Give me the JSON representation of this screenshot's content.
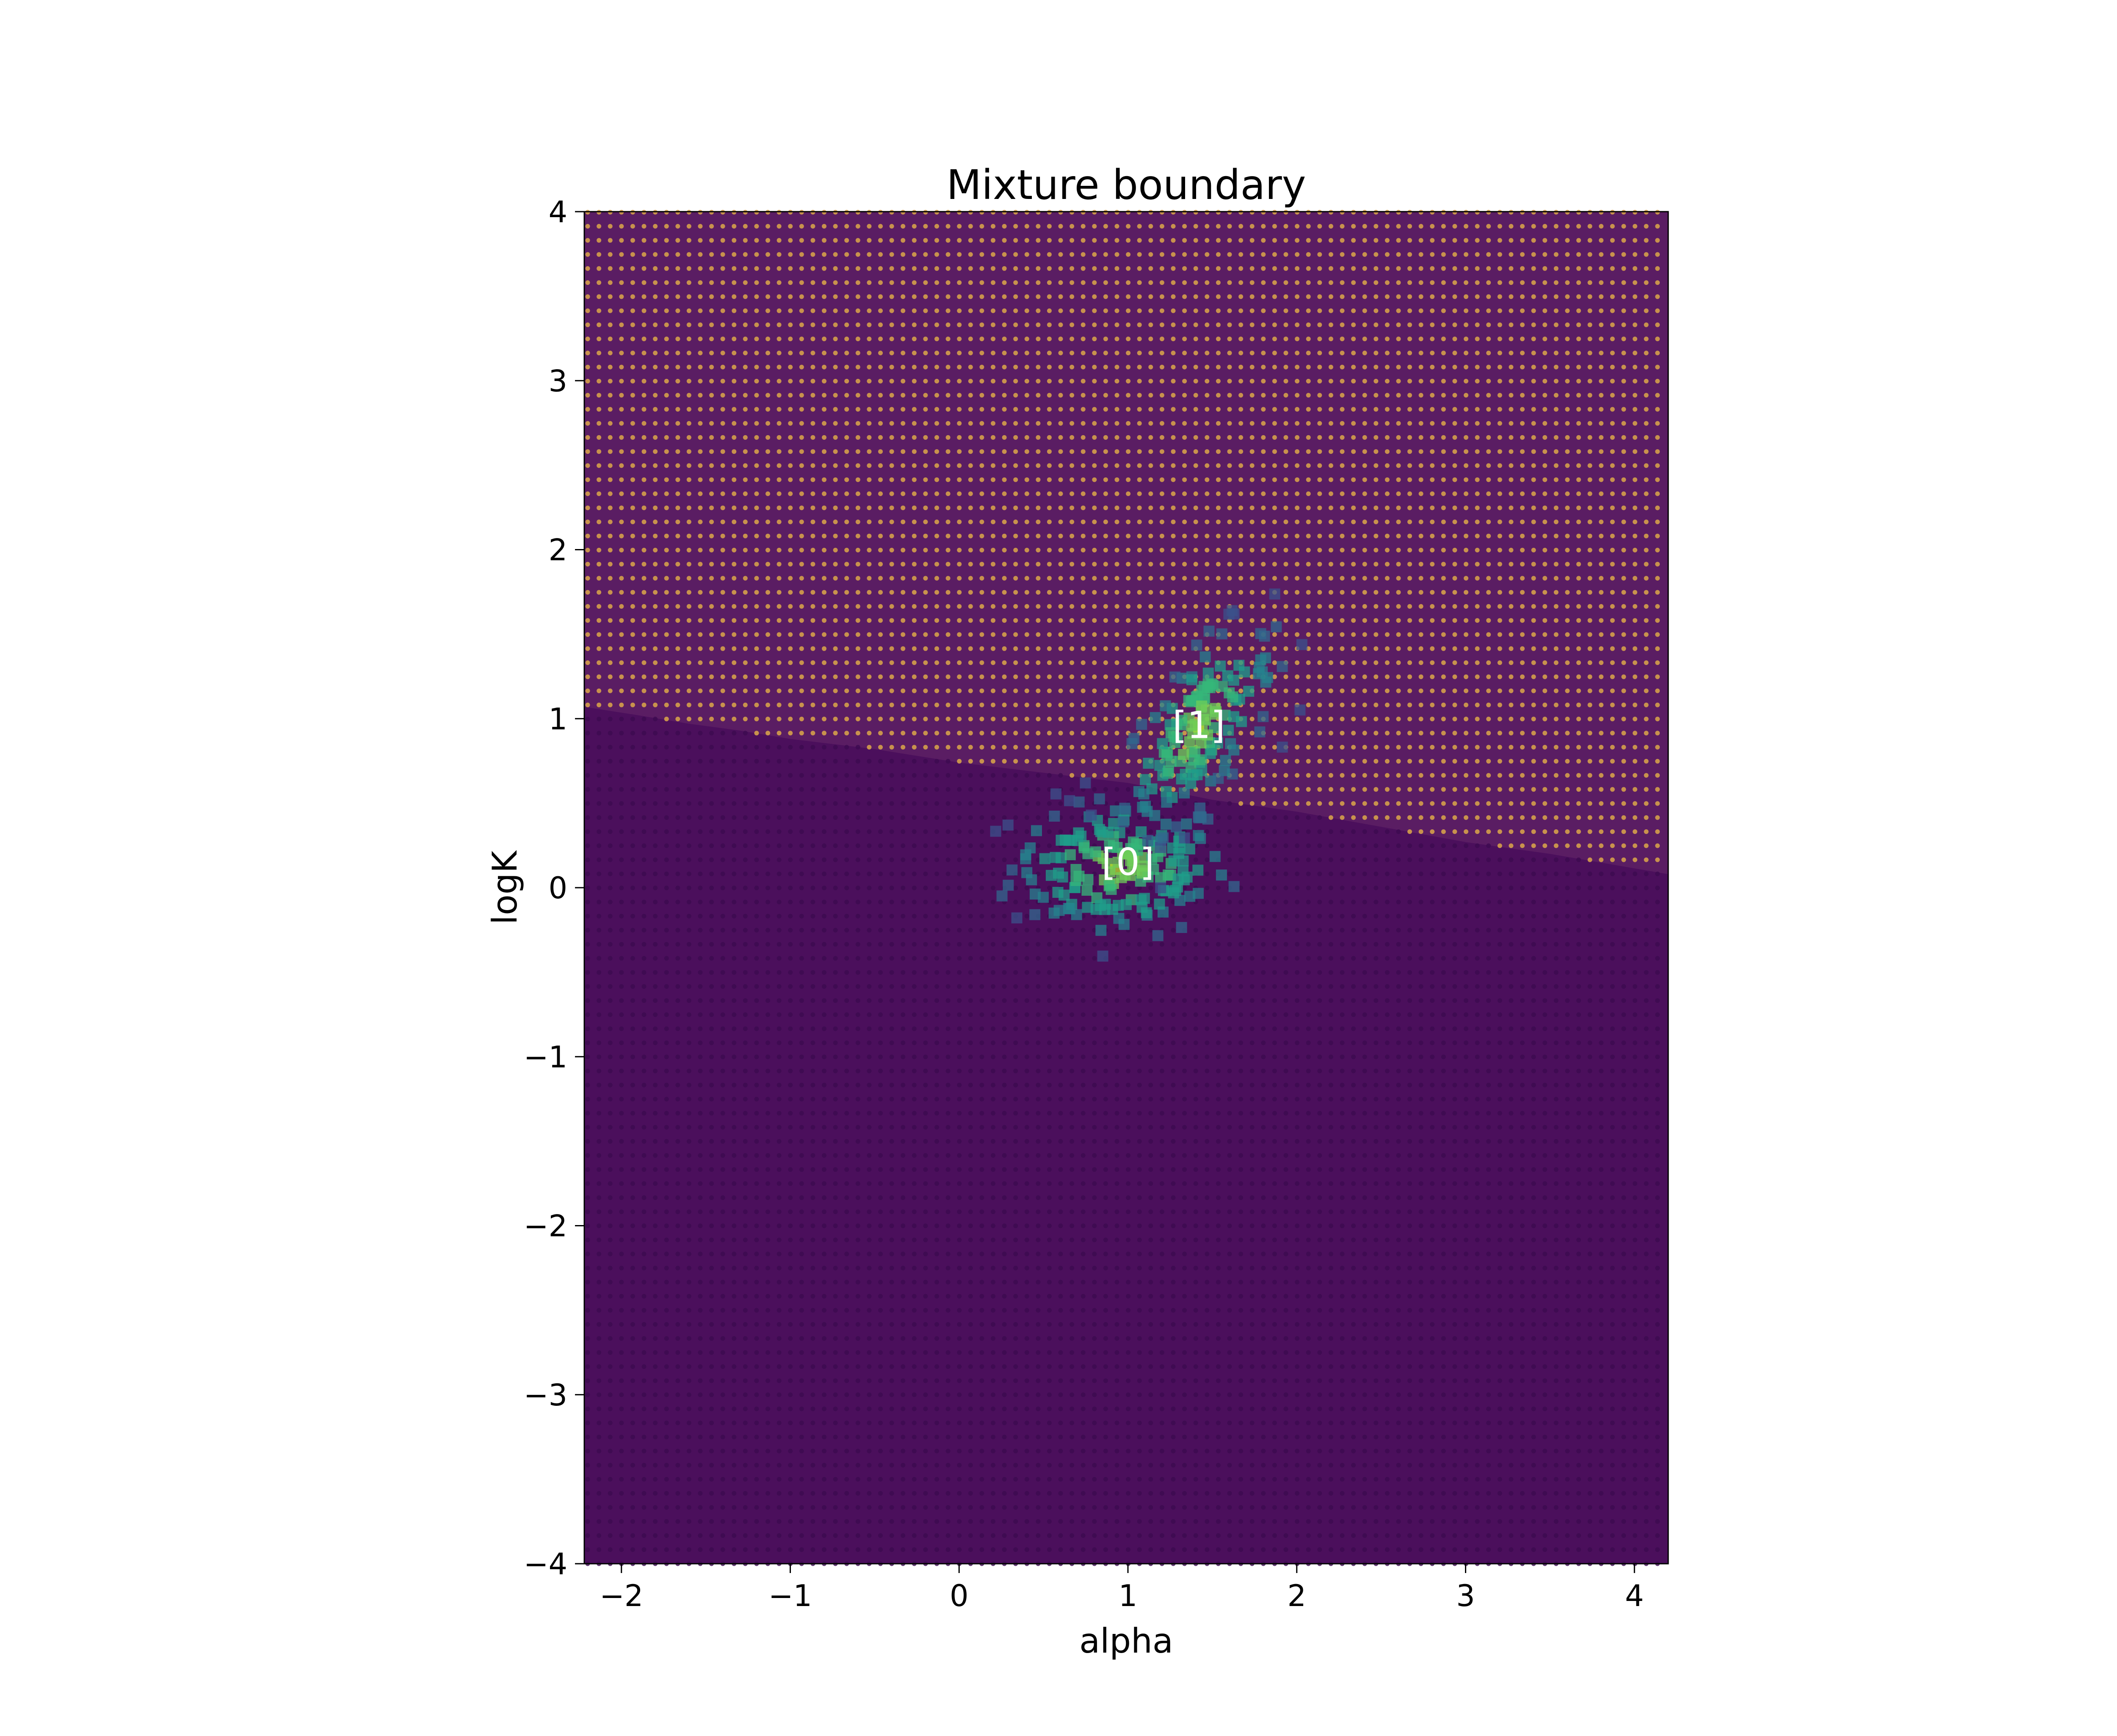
{
  "figure": {
    "title": "Mixture boundary"
  },
  "chart_data": {
    "type": "scatter",
    "title": "Mixture boundary",
    "xlabel": "alpha",
    "ylabel": "logK",
    "xlim": [
      -2.22,
      4.2
    ],
    "ylim": [
      -4,
      4
    ],
    "xticks": [
      -2,
      -1,
      0,
      1,
      2,
      3,
      4
    ],
    "xtick_labels": [
      "−2",
      "−1",
      "0",
      "1",
      "2",
      "3",
      "4"
    ],
    "yticks": [
      -4,
      -3,
      -2,
      -1,
      0,
      1,
      2,
      3,
      4
    ],
    "ytick_labels": [
      "−4",
      "−3",
      "−2",
      "−1",
      "0",
      "1",
      "2",
      "3",
      "4"
    ],
    "grid": false,
    "background_grid": {
      "description_free": true,
      "x_start": -2.2,
      "x_step": 0.0667,
      "x_count": 97,
      "y_start": -4.0,
      "y_step": 0.0833,
      "y_count": 97,
      "boundary": {
        "points": [
          [
            -2.22,
            1.07
          ],
          [
            -1.9,
            1.02
          ],
          [
            -1.6,
            0.97
          ],
          [
            -1.3,
            0.93
          ],
          [
            -1.0,
            0.88
          ],
          [
            -0.5,
            0.82
          ],
          [
            0.0,
            0.74
          ],
          [
            0.5,
            0.68
          ],
          [
            1.0,
            0.62
          ],
          [
            1.5,
            0.52
          ],
          [
            2.0,
            0.45
          ],
          [
            2.5,
            0.36
          ],
          [
            3.0,
            0.27
          ],
          [
            3.5,
            0.2
          ],
          [
            4.2,
            0.08
          ]
        ]
      },
      "class_colors": {
        "0": "#440154",
        "1": "#fde725"
      },
      "region_color_below": "#4b0f5c",
      "dot_color_below": "#3c0a50",
      "dot_color_above": "#d4a04a",
      "region_color_above": "#5a1d63"
    },
    "clusters": [
      {
        "name": "[0]",
        "center": [
          0.95,
          0.12
        ],
        "spread": [
          0.32,
          0.2
        ],
        "count": 170
      },
      {
        "name": "[1]",
        "center": [
          1.42,
          0.95
        ],
        "spread": [
          0.22,
          0.22
        ],
        "count": 150
      }
    ],
    "annotations": [
      {
        "text": "[0]",
        "x": 1.0,
        "y": 0.15,
        "color": "#ffffff"
      },
      {
        "text": "[1]",
        "x": 1.42,
        "y": 0.96,
        "color": "#ffffff"
      }
    ]
  }
}
